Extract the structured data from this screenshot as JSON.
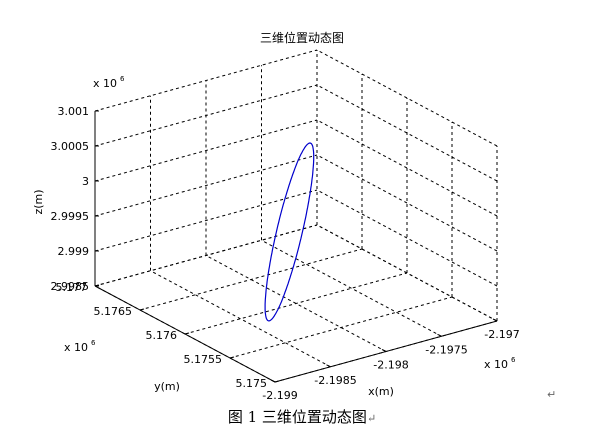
{
  "chart_data": {
    "type": "line",
    "title": "三维位置动态图",
    "xlabel": "x(m)",
    "ylabel": "y(m)",
    "zlabel": "z(m)",
    "x_exponent_label": "x 10",
    "x_exponent_sup": "6",
    "y_exponent_label": "x 10",
    "y_exponent_sup": "6",
    "z_exponent_label": "x 10",
    "z_exponent_sup": "6",
    "xlim": [
      -2.199,
      -2.197
    ],
    "ylim": [
      5.175,
      5.177
    ],
    "zlim": [
      2.9985,
      3.001
    ],
    "x_ticks": [
      "-2.199",
      "-2.1985",
      "-2.198",
      "-2.1975",
      "-2.197"
    ],
    "y_ticks": [
      "5.175",
      "5.1755",
      "5.176",
      "5.1765",
      "5.177"
    ],
    "z_ticks": [
      "2.9985",
      "2.999",
      "2.9995",
      "3",
      "3.0005",
      "3.001"
    ],
    "grid": true,
    "series": [
      {
        "color": "#0000cc",
        "shape": "closed ellipse (circular trajectory)",
        "x_range": [
          -2.19865,
          -2.19755
        ],
        "y_range": [
          5.17545,
          5.17645
        ],
        "z_range": [
          2.99885,
          3.00035
        ]
      }
    ]
  },
  "caption": {
    "text": "图 1  三维位置动态图",
    "para_mark": "↵"
  },
  "para_mark": "↵"
}
